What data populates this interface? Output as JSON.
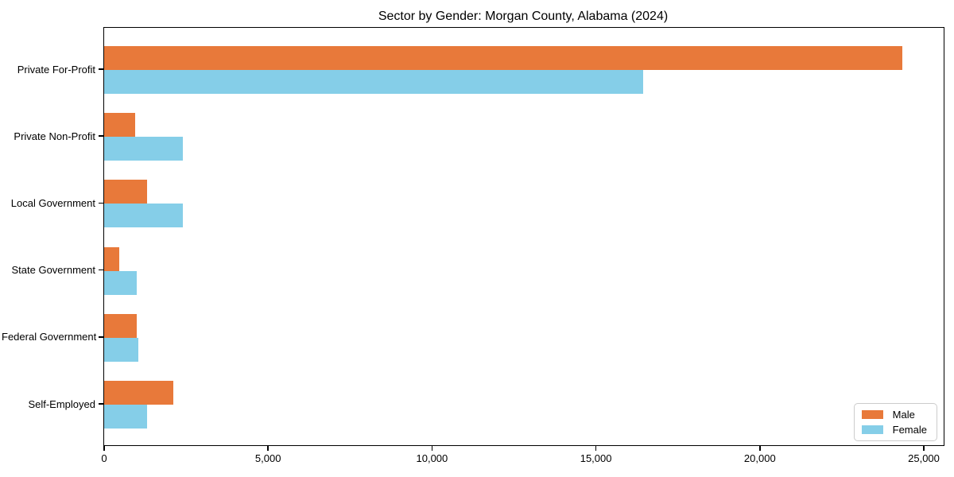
{
  "chart_data": {
    "type": "bar",
    "orientation": "horizontal",
    "title": "Sector by Gender: Morgan County, Alabama (2024)",
    "categories": [
      "Private For-Profit",
      "Private Non-Profit",
      "Local Government",
      "State Government",
      "Federal Government",
      "Self-Employed"
    ],
    "series": [
      {
        "name": "Male",
        "color": "#E8793A",
        "values": [
          24350,
          950,
          1300,
          450,
          1000,
          2100
        ]
      },
      {
        "name": "Female",
        "color": "#85CEE8",
        "values": [
          16450,
          2400,
          2400,
          1000,
          1050,
          1300
        ]
      }
    ],
    "xlabel": "",
    "ylabel": "",
    "xlim": [
      0,
      25600
    ],
    "xticks": [
      0,
      5000,
      10000,
      15000,
      20000,
      25000
    ],
    "xtick_labels": [
      "0",
      "5,000",
      "10,000",
      "15,000",
      "20,000",
      "25,000"
    ],
    "grid": false,
    "legend": {
      "position": "lower right",
      "entries": [
        "Male",
        "Female"
      ]
    }
  }
}
